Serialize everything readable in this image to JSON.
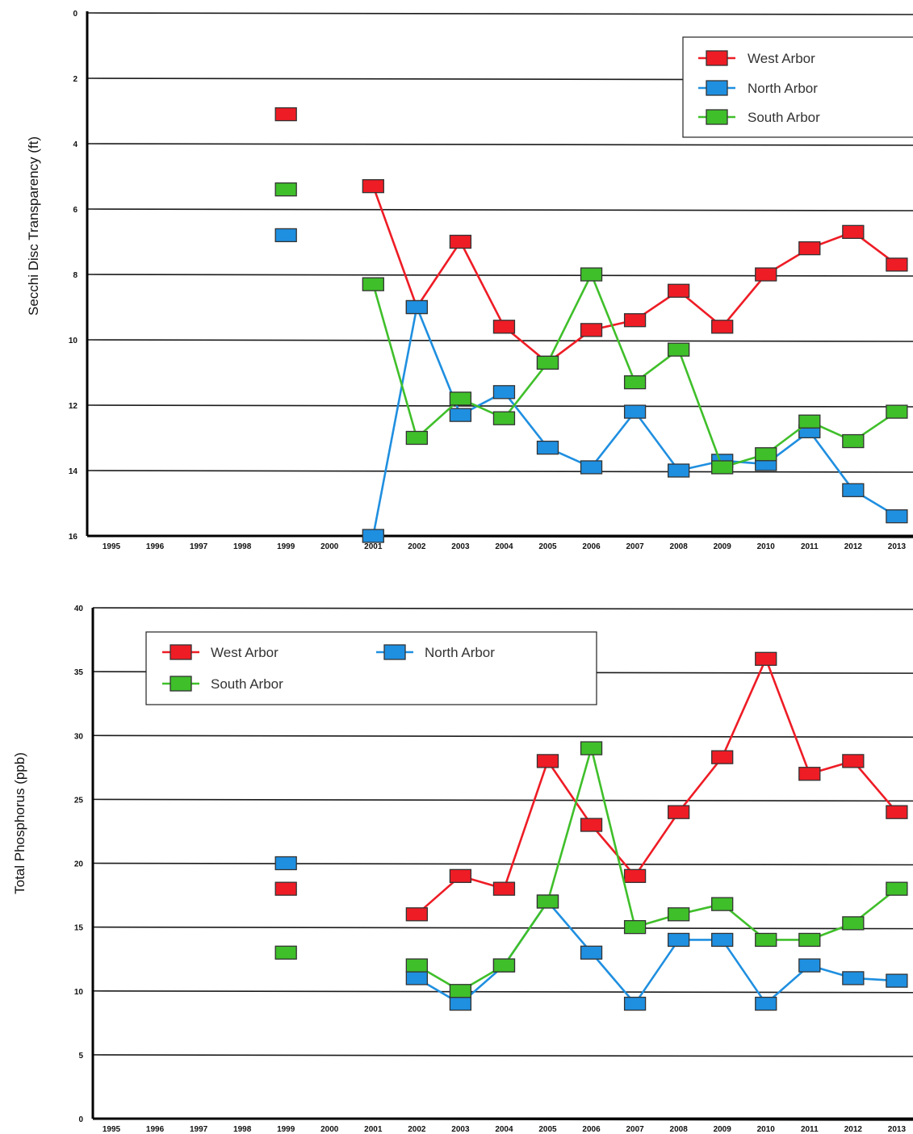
{
  "colors": {
    "West Arbor": "#ee1c25",
    "North Arbor": "#1f8fe0",
    "South Arbor": "#3fbf2a"
  },
  "chart_data": [
    {
      "type": "line",
      "ylabel": "Secchi Disc Transparency (ft)",
      "xlabel": "",
      "inverted_y": true,
      "ylim": [
        0,
        16
      ],
      "yticks": [
        "0",
        "2",
        "4",
        "6",
        "8",
        "10",
        "12",
        "14",
        "16"
      ],
      "x": [
        "1995",
        "1996",
        "1997",
        "1998",
        "1999",
        "2000",
        "2001",
        "2002",
        "2003",
        "2004",
        "2005",
        "2006",
        "2007",
        "2008",
        "2009",
        "2010",
        "2011",
        "2012",
        "2013"
      ],
      "legend": {
        "position": "top-right",
        "order": [
          "West Arbor",
          "North Arbor",
          "South Arbor"
        ]
      },
      "series": [
        {
          "name": "West Arbor",
          "values": [
            null,
            null,
            null,
            null,
            3.1,
            null,
            5.3,
            9.0,
            7.0,
            9.6,
            10.7,
            9.7,
            9.4,
            8.5,
            9.6,
            8.0,
            7.2,
            6.7,
            7.7
          ]
        },
        {
          "name": "North Arbor",
          "values": [
            null,
            null,
            null,
            null,
            6.8,
            null,
            16.0,
            9.0,
            12.3,
            11.6,
            13.3,
            13.9,
            12.2,
            14.0,
            13.7,
            13.8,
            12.8,
            14.6,
            15.4
          ]
        },
        {
          "name": "South Arbor",
          "values": [
            null,
            null,
            null,
            null,
            5.4,
            null,
            8.3,
            13.0,
            11.8,
            12.4,
            10.7,
            8.0,
            11.3,
            10.3,
            13.9,
            13.5,
            12.5,
            13.1,
            12.2
          ]
        }
      ]
    },
    {
      "type": "line",
      "ylabel": "Total Phosphorus (ppb)",
      "xlabel": "",
      "ylim": [
        0,
        40
      ],
      "yticks": [
        "0",
        "5",
        "10",
        "15",
        "20",
        "25",
        "30",
        "35",
        "40"
      ],
      "x": [
        "1995",
        "1996",
        "1997",
        "1998",
        "1999",
        "2000",
        "2001",
        "2002",
        "2003",
        "2004",
        "2005",
        "2006",
        "2007",
        "2008",
        "2009",
        "2010",
        "2011",
        "2012",
        "2013"
      ],
      "legend": {
        "position": "top-left",
        "order": [
          "West Arbor",
          "North Arbor",
          "South Arbor"
        ]
      },
      "series": [
        {
          "name": "West Arbor",
          "values": [
            null,
            null,
            null,
            null,
            18,
            null,
            null,
            16,
            19,
            18,
            28,
            23,
            19,
            24,
            28.3,
            36,
            27,
            28,
            24
          ]
        },
        {
          "name": "North Arbor",
          "values": [
            null,
            null,
            null,
            null,
            20,
            null,
            null,
            11,
            9,
            12,
            17,
            13,
            9,
            14,
            14,
            9,
            12,
            11,
            10.8
          ]
        },
        {
          "name": "South Arbor",
          "values": [
            null,
            null,
            null,
            null,
            13,
            null,
            null,
            12,
            10,
            12,
            17,
            29,
            15,
            16,
            16.8,
            14,
            14,
            15.3,
            18
          ]
        }
      ]
    }
  ]
}
